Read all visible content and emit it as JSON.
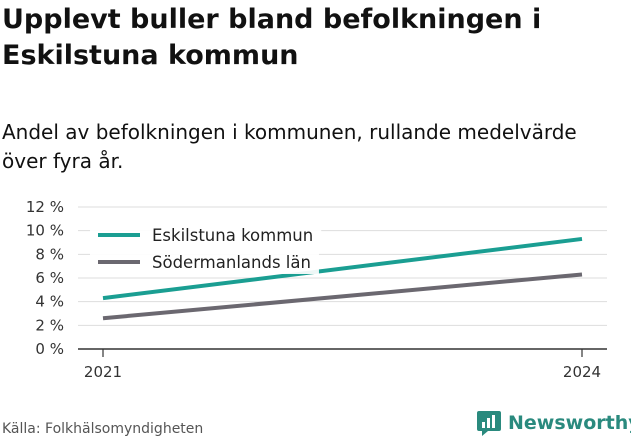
{
  "title": "Upplevt buller bland befolkningen i Eskilstuna kommun",
  "subtitle": "Andel av befolkningen i kommunen, rullande medelvärde över fyra år.",
  "source": "Källa: Folkhälsomyndigheten",
  "brand": {
    "name": "Newsworthy",
    "icon": "newsworthy-logo-icon"
  },
  "colors": {
    "eskilstuna": "#1a9e92",
    "sodermanland": "#6b6870",
    "grid": "#dddddd",
    "axis": "#333333",
    "brand": "#2a8a7e"
  },
  "chart_data": {
    "type": "line",
    "x": [
      2021,
      2024
    ],
    "x_tick_labels": [
      "2021",
      "2024"
    ],
    "ylim": [
      0,
      12
    ],
    "y_ticks": [
      0,
      2,
      4,
      6,
      8,
      10,
      12
    ],
    "y_tick_labels": [
      "0 %",
      "2 %",
      "4 %",
      "6 %",
      "8 %",
      "10 %",
      "12 %"
    ],
    "grid": true,
    "legend": "top-left",
    "series": [
      {
        "name": "Eskilstuna kommun",
        "color": "#1a9e92",
        "values": [
          4.3,
          9.3
        ]
      },
      {
        "name": "Södermanlands län",
        "color": "#6b6870",
        "values": [
          2.6,
          6.3
        ]
      }
    ]
  }
}
